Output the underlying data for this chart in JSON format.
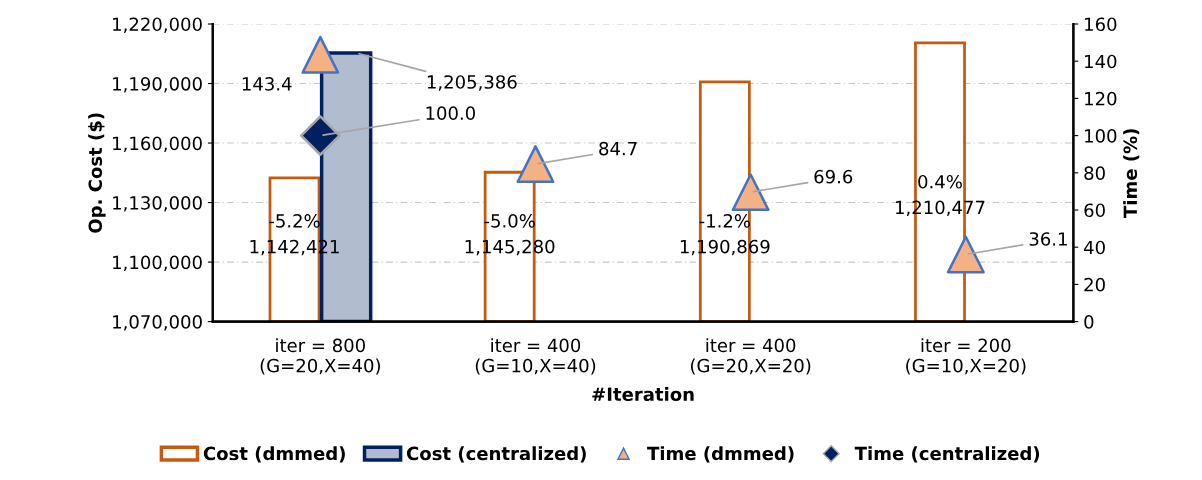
{
  "chart_data": {
    "type": "bar",
    "categories": [
      "iter = 800\n(G=20,X=40)",
      "iter = 400\n(G=10,X=40)",
      "iter = 400\n(G=20,X=20)",
      "iter = 200\n(G=10,X=20)"
    ],
    "xlabel": "#Iteration",
    "ylabel": "Op. Cost ($)",
    "y2label": "Time (%)",
    "series": [
      {
        "name": "Cost (dmmed)",
        "color": "#c55a11",
        "values": [
          1142421,
          1145280,
          1190869,
          1210477
        ],
        "value_labels": [
          "-5.2%\n1,142,421",
          "-5.0%\n1,145,280",
          "-1.2%\n1,190,869",
          "0.4%\n1,210,477"
        ]
      },
      {
        "name": "Cost (centralized)",
        "color": "#002060",
        "values": [
          1205386,
          null,
          null,
          null
        ],
        "value_labels": [
          "1,205,386",
          null,
          null,
          null
        ]
      },
      {
        "name": "Time (dmmed)",
        "type": "scatter",
        "axis": "y2",
        "marker": "triangle",
        "color": "#f4b183",
        "values": [
          143.4,
          84.7,
          69.6,
          36.1
        ],
        "value_labels": [
          "143.4",
          "84.7",
          "69.6",
          "36.1"
        ]
      },
      {
        "name": "Time (centralized)",
        "type": "scatter",
        "axis": "y2",
        "marker": "diamond",
        "color": "#002060",
        "values": [
          100.0,
          null,
          null,
          null
        ],
        "value_labels": [
          "100.0",
          null,
          null,
          null
        ]
      }
    ],
    "ylim": [
      1070000,
      1220000
    ],
    "yticks": [
      {
        "value": 1070000,
        "label": "1,070,000"
      },
      {
        "value": 1100000,
        "label": "1,100,000"
      },
      {
        "value": 1130000,
        "label": "1,130,000"
      },
      {
        "value": 1160000,
        "label": "1,160,000"
      },
      {
        "value": 1190000,
        "label": "1,190,000"
      },
      {
        "value": 1220000,
        "label": "1,220,000"
      }
    ],
    "y2lim": [
      0,
      160
    ],
    "y2ticks": [
      0,
      20,
      40,
      60,
      80,
      100,
      120,
      140,
      160
    ],
    "grid": true,
    "legend": "bottom"
  }
}
